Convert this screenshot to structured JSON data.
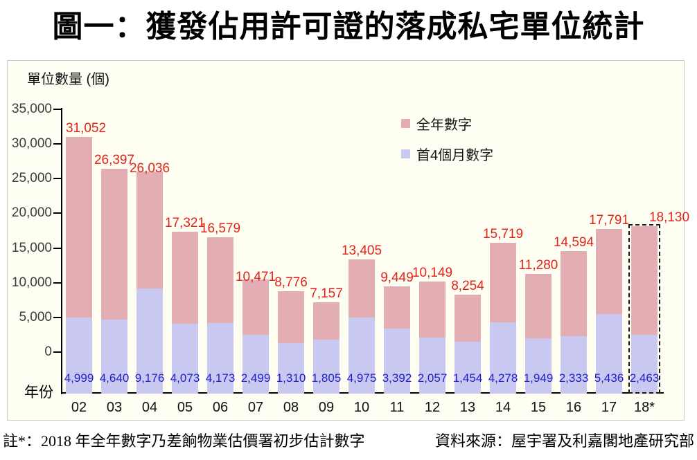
{
  "chart_data": {
    "type": "bar",
    "stacked": true,
    "title": "圖一：獲發佔用許可證的落成私宅單位統計",
    "ylabel": "單位數量 (個)",
    "xlabel": "年份",
    "categories": [
      "02",
      "03",
      "04",
      "05",
      "06",
      "07",
      "08",
      "09",
      "10",
      "11",
      "12",
      "13",
      "14",
      "15",
      "16",
      "17",
      "18*"
    ],
    "series": [
      {
        "name": "全年數字",
        "color": "#E2ADB3",
        "values": [
          31052,
          26397,
          26036,
          17321,
          16579,
          10471,
          8776,
          7157,
          13405,
          9449,
          10149,
          8254,
          15719,
          11280,
          14594,
          17791,
          18130
        ]
      },
      {
        "name": "首4個月數字",
        "color": "#C8C8F0",
        "values": [
          4999,
          4640,
          9176,
          4073,
          4173,
          2499,
          1310,
          1805,
          4975,
          3392,
          2057,
          1454,
          4278,
          1949,
          2333,
          5436,
          2463
        ]
      }
    ],
    "value_labels": {
      "full_year": [
        "31,052",
        "26,397",
        "26,036",
        "17,321",
        "16,579",
        "10,471",
        "8,776",
        "7,157",
        "13,405",
        "9,449",
        "10,149",
        "8,254",
        "15,719",
        "11,280",
        "14,594",
        "17,791",
        "18,130"
      ],
      "first4": [
        "4,999",
        "4,640",
        "9,176",
        "4,073",
        "4,173",
        "2,499",
        "1,310",
        "1,805",
        "4,975",
        "3,392",
        "2,057",
        "1,454",
        "4,278",
        "1,949",
        "2,333",
        "5,436",
        "2,463"
      ]
    },
    "value_label_colors": {
      "full_year": "#E2231A",
      "first4": "#2121CC"
    },
    "ylim": [
      0,
      35000
    ],
    "y_tick_step": 5000,
    "y_tick_labels": [
      "35,000",
      "30,000",
      "25,000",
      "20,000",
      "15,000",
      "10,000",
      "5,000",
      "0"
    ],
    "grid": false,
    "legend_position": "top-right",
    "last_bar_dashed": true
  },
  "footnote": "註*：2018 年全年數字乃差餉物業估價署初步估計數字",
  "source": "資料來源：屋宇署及利嘉閣地產研究部",
  "colors": {
    "chart_background": "#FFFEF2",
    "box_border": "#C9C9C9",
    "axis": "#000000",
    "tick_label": "#3C3C3C"
  }
}
